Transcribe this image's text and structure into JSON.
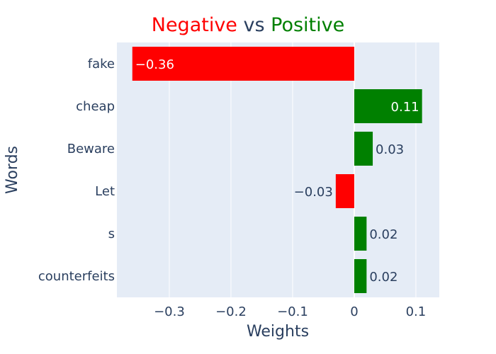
{
  "chart_data": {
    "type": "bar",
    "orientation": "horizontal",
    "title": {
      "parts": [
        {
          "text": "Negative",
          "color": "#ff0000"
        },
        {
          "text": " vs ",
          "color": "#2a3f5f"
        },
        {
          "text": "Positive",
          "color": "#008000"
        }
      ]
    },
    "xlabel": "Weights",
    "ylabel": "Words",
    "categories": [
      "fake",
      "cheap",
      "Beware",
      "Let",
      "s",
      "counterfeits"
    ],
    "values": [
      -0.36,
      0.11,
      0.03,
      -0.03,
      0.02,
      0.02
    ],
    "data_labels": [
      "−0.36",
      "0.11",
      "0.03",
      "−0.03",
      "0.02",
      "0.02"
    ],
    "xlim": [
      -0.385,
      0.138
    ],
    "x_ticks": [
      -0.3,
      -0.2,
      -0.1,
      0,
      0.1
    ],
    "x_tick_labels": [
      "−0.3",
      "−0.2",
      "−0.1",
      "0",
      "0.1"
    ],
    "colors": {
      "negative": "#ff0000",
      "positive": "#008000",
      "plot_background": "#e5ecf6",
      "gridline": "#ffffff",
      "text": "#2a3f5f"
    },
    "grid": true
  }
}
